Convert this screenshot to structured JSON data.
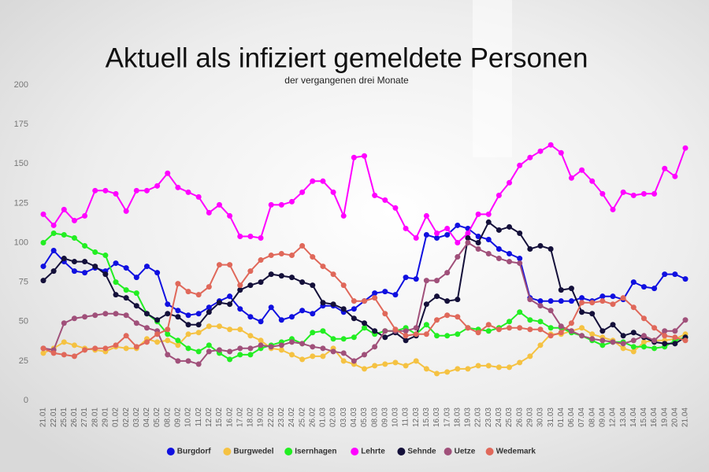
{
  "chart_data": {
    "type": "line",
    "title": "Aktuell als infiziert gemeldete Personen",
    "subtitle": "der vergangenen drei Monate",
    "categories": [
      "21.01",
      "22.01",
      "25.01",
      "26.01",
      "27.01",
      "28.01",
      "29.01",
      "01.02",
      "02.02",
      "03.02",
      "04.02",
      "05.02",
      "08.02",
      "09.02",
      "10.02",
      "11.02",
      "12.02",
      "15.02",
      "16.02",
      "17.02",
      "18.02",
      "19.02",
      "22.02",
      "23.02",
      "24.02",
      "25.02",
      "26.02",
      "01.03",
      "02.03",
      "03.03",
      "04.03",
      "05.03",
      "08.03",
      "09.03",
      "10.03",
      "11.03",
      "12.03",
      "15.03",
      "16.03",
      "17.03",
      "18.03",
      "19.03",
      "22.03",
      "23.03",
      "24.03",
      "25.03",
      "26.03",
      "29.03",
      "30.03",
      "31.03",
      "01.04",
      "06.04",
      "07.04",
      "08.04",
      "09.04",
      "12.04",
      "13.04",
      "14.04",
      "15.04",
      "16.04",
      "19.04",
      "20.04",
      "21.04"
    ],
    "series": [
      {
        "name": "Burgdorf",
        "color": "#1010e0",
        "values": [
          85,
          95,
          88,
          82,
          81,
          84,
          82,
          87,
          84,
          78,
          85,
          81,
          61,
          57,
          54,
          55,
          59,
          63,
          66,
          58,
          53,
          50,
          59,
          51,
          53,
          57,
          55,
          60,
          60,
          56,
          58,
          63,
          68,
          69,
          67,
          78,
          77,
          105,
          103,
          105,
          111,
          109,
          104,
          102,
          96,
          93,
          90,
          65,
          63,
          63,
          63,
          63,
          65,
          63,
          66,
          66,
          64,
          75,
          72,
          71,
          80,
          80,
          77
        ]
      },
      {
        "name": "Burgwedel",
        "color": "#f5c242",
        "values": [
          30,
          33,
          37,
          35,
          33,
          32,
          31,
          34,
          33,
          33,
          39,
          37,
          38,
          35,
          42,
          43,
          47,
          47,
          45,
          45,
          41,
          38,
          33,
          32,
          29,
          26,
          28,
          28,
          33,
          25,
          23,
          20,
          22,
          23,
          24,
          22,
          25,
          20,
          17,
          18,
          20,
          20,
          22,
          22,
          21,
          21,
          24,
          28,
          35,
          42,
          42,
          44,
          46,
          42,
          40,
          38,
          33,
          31,
          37,
          38,
          38,
          39,
          42
        ]
      },
      {
        "name": "Isernhagen",
        "color": "#22ee22",
        "values": [
          100,
          106,
          105,
          103,
          98,
          94,
          92,
          75,
          70,
          68,
          55,
          50,
          42,
          38,
          33,
          31,
          35,
          30,
          26,
          29,
          29,
          33,
          35,
          37,
          39,
          36,
          43,
          44,
          39,
          39,
          40,
          46,
          42,
          44,
          44,
          46,
          42,
          48,
          41,
          41,
          42,
          46,
          45,
          44,
          46,
          50,
          56,
          51,
          50,
          46,
          46,
          43,
          41,
          38,
          35,
          37,
          37,
          34,
          34,
          33,
          34,
          38,
          40
        ]
      },
      {
        "name": "Lehrte",
        "color": "#ff00ff",
        "values": [
          118,
          111,
          121,
          114,
          117,
          133,
          133,
          131,
          120,
          133,
          133,
          136,
          144,
          135,
          132,
          129,
          119,
          124,
          117,
          104,
          104,
          103,
          124,
          124,
          126,
          132,
          139,
          139,
          132,
          117,
          154,
          155,
          130,
          127,
          122,
          109,
          103,
          117,
          106,
          109,
          100,
          106,
          118,
          118,
          130,
          138,
          149,
          154,
          158,
          162,
          157,
          141,
          146,
          139,
          131,
          121,
          132,
          130,
          131,
          131,
          147,
          142,
          160
        ]
      },
      {
        "name": "Sehnde",
        "color": "#14103a",
        "values": [
          76,
          82,
          90,
          88,
          88,
          85,
          80,
          67,
          65,
          60,
          55,
          51,
          55,
          53,
          48,
          48,
          56,
          62,
          61,
          70,
          73,
          75,
          80,
          79,
          78,
          75,
          73,
          62,
          61,
          58,
          52,
          49,
          44,
          40,
          43,
          38,
          41,
          61,
          66,
          63,
          64,
          103,
          100,
          113,
          108,
          110,
          106,
          96,
          98,
          96,
          70,
          71,
          56,
          55,
          44,
          48,
          41,
          43,
          40,
          37,
          36,
          36,
          40
        ]
      },
      {
        "name": "Uetze",
        "color": "#a0507a",
        "values": [
          33,
          32,
          49,
          52,
          53,
          54,
          55,
          55,
          54,
          49,
          46,
          44,
          29,
          25,
          25,
          23,
          31,
          32,
          31,
          33,
          33,
          35,
          34,
          35,
          37,
          36,
          34,
          33,
          31,
          30,
          25,
          29,
          34,
          44,
          44,
          44,
          46,
          76,
          76,
          81,
          91,
          100,
          96,
          93,
          90,
          88,
          87,
          64,
          60,
          57,
          47,
          44,
          41,
          39,
          38,
          37,
          36,
          38,
          41,
          38,
          44,
          44,
          51
        ]
      },
      {
        "name": "Wedemark",
        "color": "#e0685a",
        "values": [
          33,
          30,
          29,
          28,
          32,
          33,
          33,
          35,
          41,
          34,
          37,
          42,
          45,
          74,
          69,
          67,
          72,
          86,
          86,
          73,
          82,
          89,
          92,
          93,
          92,
          98,
          91,
          85,
          80,
          73,
          63,
          63,
          65,
          55,
          45,
          41,
          42,
          42,
          51,
          54,
          53,
          46,
          43,
          48,
          45,
          46,
          46,
          45,
          45,
          41,
          43,
          49,
          62,
          62,
          63,
          61,
          65,
          59,
          52,
          46,
          41,
          40,
          38
        ]
      }
    ],
    "ylim": [
      0,
      200
    ],
    "yticks": [
      0,
      25,
      50,
      75,
      100,
      125,
      150,
      175,
      200
    ],
    "grid": false,
    "legend": "bottom"
  }
}
